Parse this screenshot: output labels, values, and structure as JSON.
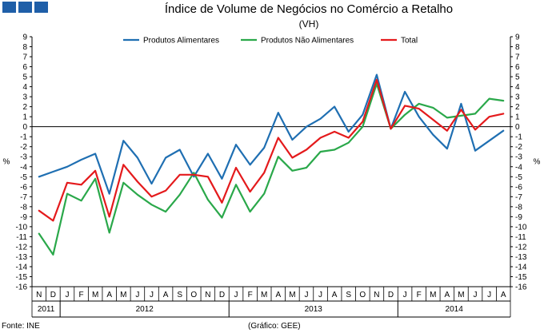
{
  "header": {
    "logo_name": "ine-logo",
    "title": "Índice de Volume de Negócios no Comércio a Retalho",
    "subtitle": "(VH)"
  },
  "footer": {
    "source": "Fonte: INE",
    "credit": "(Gráfico: GEE)"
  },
  "colors": {
    "alimentares": "#1f6fb2",
    "nao_alimentares": "#2aa84a",
    "total": "#e41a1c",
    "logo": "#1f5fa8"
  },
  "chart_data": {
    "type": "line",
    "title": "Índice de Volume de Negócios no Comércio a Retalho",
    "subtitle": "(VH)",
    "ylabel_left": "%",
    "ylabel_right": "%",
    "ylim": [
      -16,
      9
    ],
    "yticks": [
      9,
      8,
      7,
      6,
      5,
      4,
      3,
      2,
      1,
      0,
      -1,
      -2,
      -3,
      -4,
      -5,
      -6,
      -7,
      -8,
      -9,
      -10,
      -11,
      -12,
      -13,
      -14,
      -15,
      -16
    ],
    "grid": false,
    "zero_line": true,
    "legend_position": "top",
    "categories": [
      "N",
      "D",
      "J",
      "F",
      "M",
      "A",
      "M",
      "J",
      "J",
      "A",
      "S",
      "O",
      "N",
      "D",
      "J",
      "F",
      "M",
      "A",
      "M",
      "J",
      "J",
      "A",
      "S",
      "O",
      "N",
      "D",
      "J",
      "F",
      "M",
      "A",
      "M",
      "J",
      "J",
      "A"
    ],
    "years": [
      {
        "label": "2011",
        "start": 0,
        "end": 1
      },
      {
        "label": "2012",
        "start": 2,
        "end": 13
      },
      {
        "label": "2013",
        "start": 14,
        "end": 25
      },
      {
        "label": "2014",
        "start": 26,
        "end": 33
      }
    ],
    "series": [
      {
        "name": "Produtos Alimentares",
        "color": "#1f6fb2",
        "values": [
          -5.0,
          -4.5,
          -4.0,
          -3.3,
          -2.7,
          -6.7,
          -1.4,
          -3.1,
          -5.7,
          -3.1,
          -2.3,
          -5.0,
          -2.7,
          -5.2,
          -1.8,
          -3.8,
          -2.1,
          1.4,
          -1.3,
          0.0,
          0.8,
          2.0,
          -0.5,
          1.2,
          5.2,
          -0.2,
          3.5,
          1.0,
          -0.8,
          -2.2,
          2.3,
          -2.4,
          -1.4,
          -0.4
        ]
      },
      {
        "name": "Produtos Não Alimentares",
        "color": "#2aa84a",
        "values": [
          -10.7,
          -12.8,
          -6.7,
          -7.4,
          -5.2,
          -10.6,
          -5.6,
          -6.8,
          -7.8,
          -8.5,
          -6.8,
          -4.6,
          -7.3,
          -9.1,
          -5.8,
          -8.5,
          -6.7,
          -3.0,
          -4.4,
          -4.1,
          -2.5,
          -2.3,
          -1.6,
          0.0,
          4.3,
          -0.2,
          1.2,
          2.3,
          1.9,
          0.9,
          1.1,
          1.3,
          2.8,
          2.6
        ]
      },
      {
        "name": "Total",
        "color": "#e41a1c",
        "values": [
          -8.4,
          -9.4,
          -5.6,
          -5.8,
          -4.4,
          -9.0,
          -3.8,
          -5.5,
          -7.0,
          -6.4,
          -4.8,
          -4.8,
          -5.0,
          -7.6,
          -4.1,
          -6.5,
          -4.6,
          -1.1,
          -3.1,
          -2.3,
          -1.1,
          -0.5,
          -1.1,
          0.5,
          4.7,
          -0.2,
          2.1,
          1.8,
          0.7,
          -0.4,
          1.7,
          -0.3,
          1.0,
          1.3
        ]
      }
    ]
  }
}
